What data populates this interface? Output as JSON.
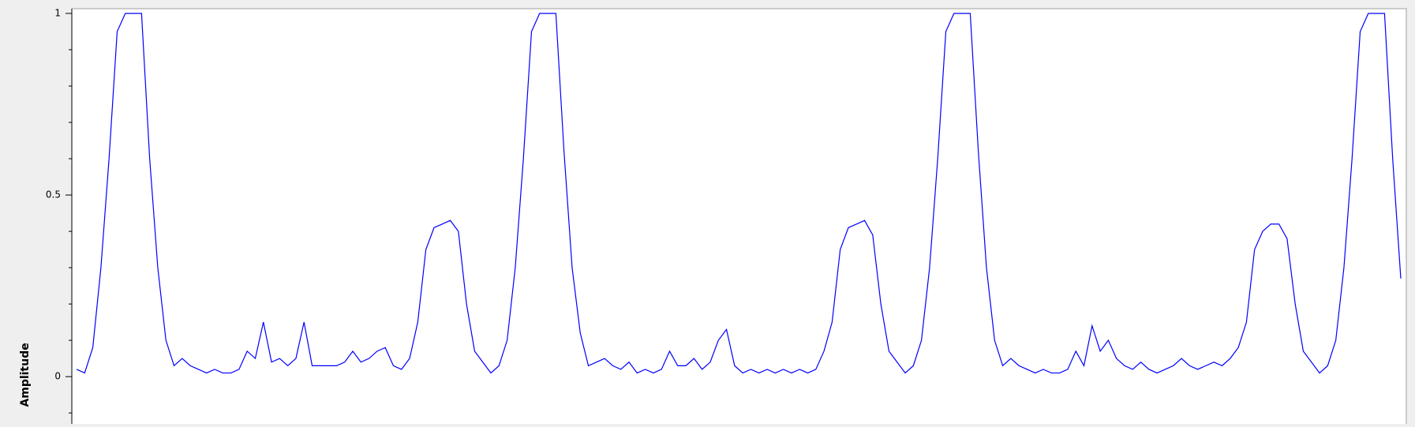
{
  "chart_data": {
    "type": "line",
    "ylabel": "Amplitude",
    "ylim": [
      -0.13,
      1.013
    ],
    "yticks": [
      0,
      0.5,
      1
    ],
    "yminorticks": [
      -0.1,
      0.1,
      0.2,
      0.3,
      0.4,
      0.6,
      0.7,
      0.8,
      0.9
    ],
    "color": "#0000ff",
    "values": [
      0.02,
      0.01,
      0.08,
      0.3,
      0.6,
      0.95,
      1,
      1,
      1,
      0.6,
      0.3,
      0.1,
      0.03,
      0.05,
      0.03,
      0.02,
      0.01,
      0.02,
      0.01,
      0.01,
      0.02,
      0.07,
      0.05,
      0.15,
      0.04,
      0.05,
      0.03,
      0.05,
      0.15,
      0.03,
      0.03,
      0.03,
      0.03,
      0.04,
      0.07,
      0.04,
      0.05,
      0.07,
      0.08,
      0.03,
      0.02,
      0.05,
      0.15,
      0.35,
      0.41,
      0.42,
      0.43,
      0.4,
      0.2,
      0.07,
      0.04,
      0.01,
      0.03,
      0.1,
      0.3,
      0.6,
      0.95,
      1,
      1,
      1,
      0.62,
      0.3,
      0.12,
      0.03,
      0.04,
      0.05,
      0.03,
      0.02,
      0.04,
      0.01,
      0.02,
      0.01,
      0.02,
      0.07,
      0.03,
      0.03,
      0.05,
      0.02,
      0.04,
      0.1,
      0.13,
      0.03,
      0.01,
      0.02,
      0.01,
      0.02,
      0.01,
      0.02,
      0.01,
      0.02,
      0.01,
      0.02,
      0.07,
      0.15,
      0.35,
      0.41,
      0.42,
      0.43,
      0.39,
      0.2,
      0.07,
      0.04,
      0.01,
      0.03,
      0.1,
      0.3,
      0.6,
      0.95,
      1,
      1,
      1,
      0.62,
      0.3,
      0.1,
      0.03,
      0.05,
      0.03,
      0.02,
      0.01,
      0.02,
      0.01,
      0.01,
      0.02,
      0.07,
      0.03,
      0.14,
      0.07,
      0.1,
      0.05,
      0.03,
      0.02,
      0.04,
      0.02,
      0.01,
      0.02,
      0.03,
      0.05,
      0.03,
      0.02,
      0.03,
      0.04,
      0.03,
      0.05,
      0.08,
      0.15,
      0.35,
      0.4,
      0.42,
      0.42,
      0.38,
      0.2,
      0.07,
      0.04,
      0.01,
      0.03,
      0.1,
      0.3,
      0.6,
      0.95,
      1,
      1,
      1,
      0.6,
      0.27
    ]
  }
}
